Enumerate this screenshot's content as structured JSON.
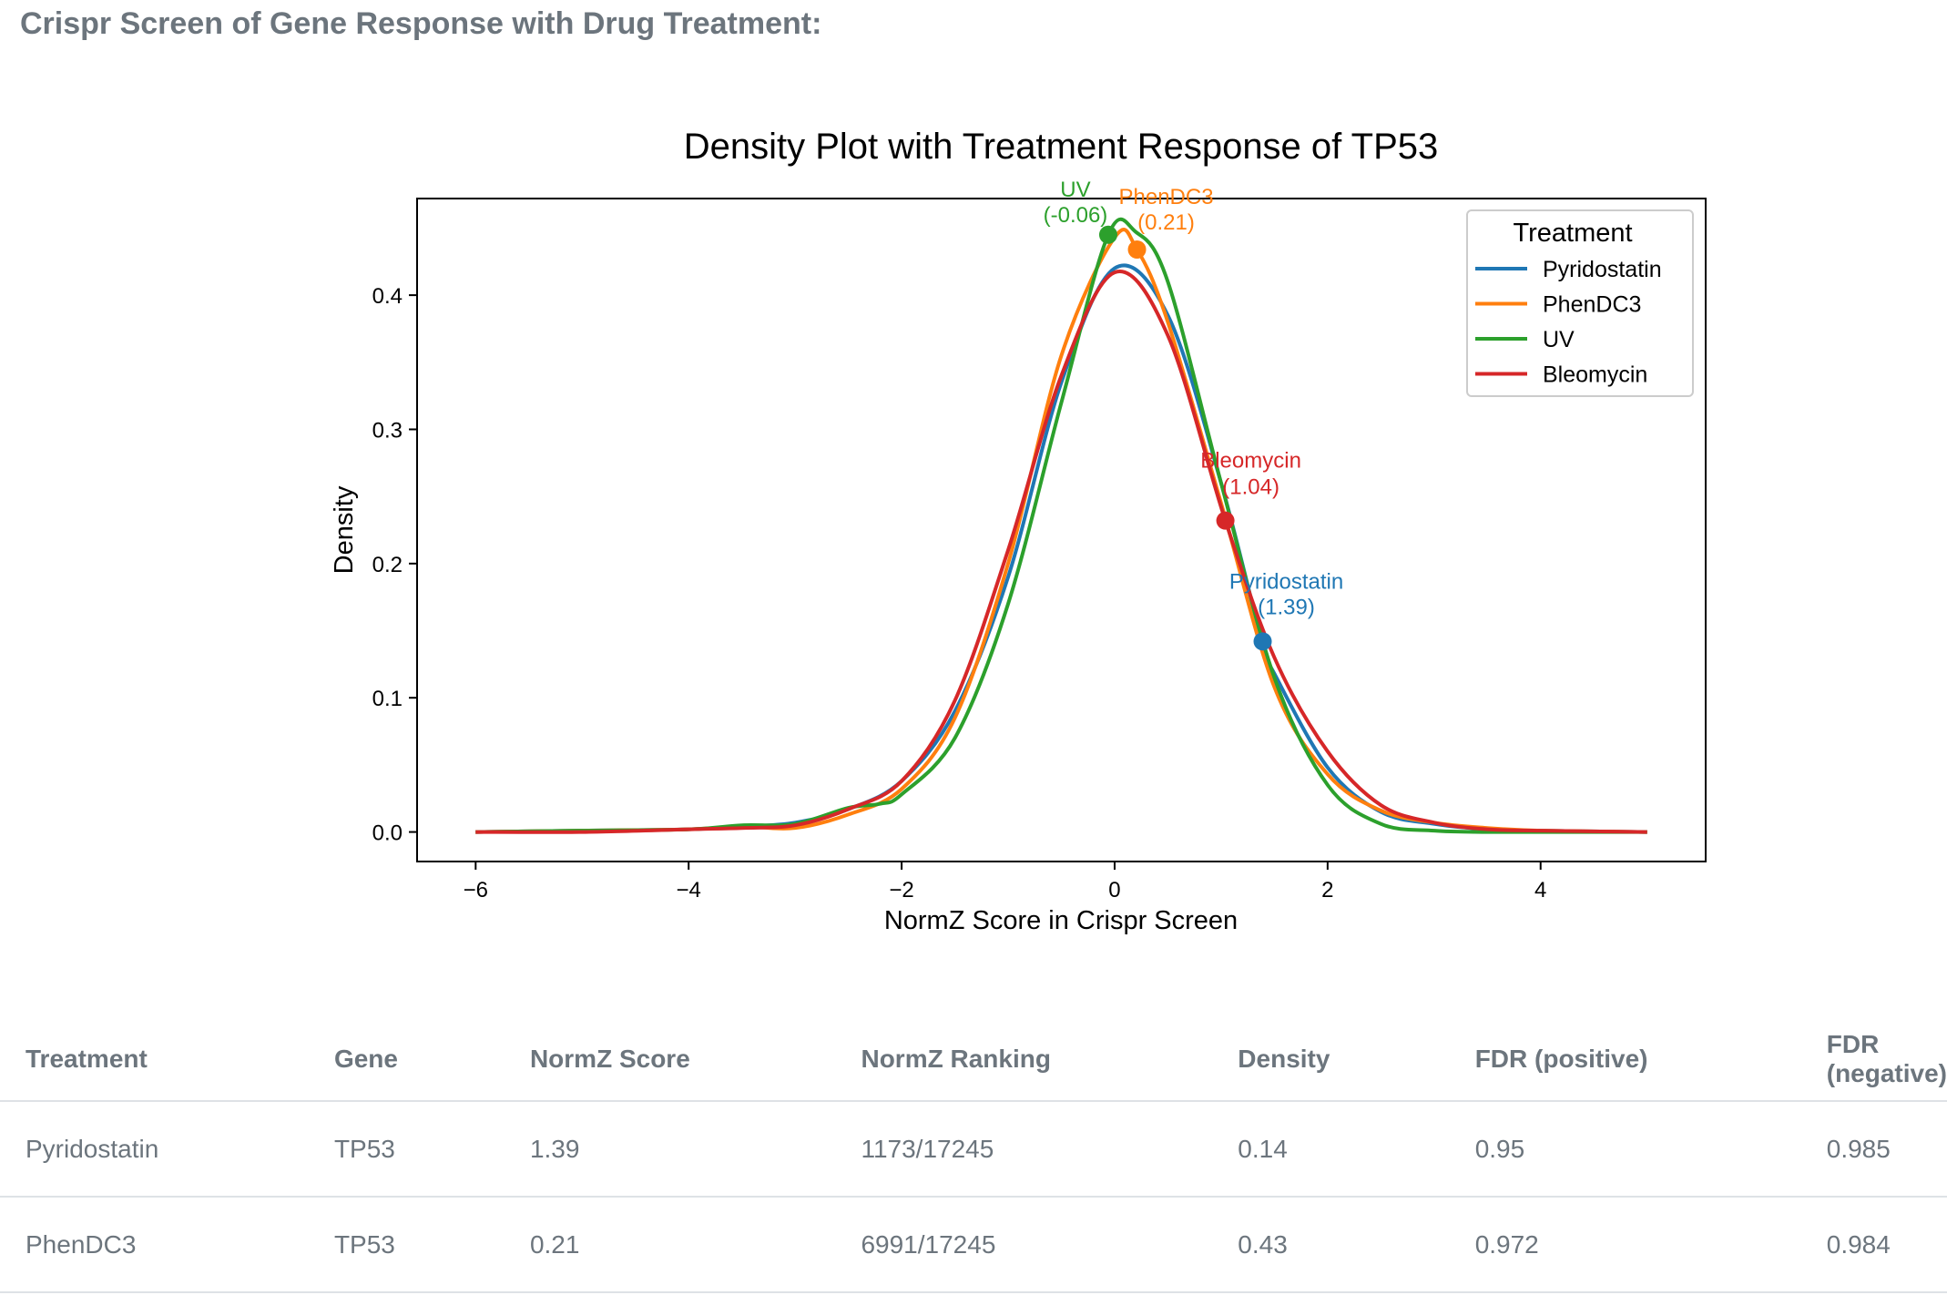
{
  "page": {
    "heading": "Crispr Screen of Gene Response with Drug Treatment:"
  },
  "chart_data": {
    "type": "line",
    "title": "Density Plot with Treatment Response of TP53",
    "xlabel": "NormZ Score in Crispr Screen",
    "ylabel": "Density",
    "xlim": [
      -6.55,
      5.55
    ],
    "ylim": [
      -0.022,
      0.472
    ],
    "xticks": [
      -6,
      -4,
      -2,
      0,
      2,
      4
    ],
    "xtick_labels": [
      "−6",
      "−4",
      "−2",
      "0",
      "2",
      "4"
    ],
    "yticks": [
      0.0,
      0.1,
      0.2,
      0.3,
      0.4
    ],
    "ytick_labels": [
      "0.0",
      "0.1",
      "0.2",
      "0.3",
      "0.4"
    ],
    "legend": {
      "title": "Treatment",
      "position": "upper right",
      "entries": [
        "Pyridostatin",
        "PhenDC3",
        "UV",
        "Bleomycin"
      ]
    },
    "series": [
      {
        "name": "Pyridostatin",
        "color": "#1f77b4",
        "x": [
          -6,
          -5,
          -4,
          -3.5,
          -3,
          -2.5,
          -2,
          -1.5,
          -1,
          -0.5,
          0,
          0.5,
          1,
          1.39,
          1.5,
          2,
          2.5,
          3,
          3.5,
          4,
          5
        ],
        "y": [
          0.0,
          0.001,
          0.002,
          0.004,
          0.007,
          0.017,
          0.038,
          0.09,
          0.19,
          0.335,
          0.42,
          0.385,
          0.26,
          0.14,
          0.118,
          0.048,
          0.015,
          0.006,
          0.002,
          0.001,
          0.0
        ]
      },
      {
        "name": "PhenDC3",
        "color": "#ff7f0e",
        "x": [
          -6,
          -5,
          -4,
          -3.5,
          -3,
          -2.5,
          -2,
          -1.5,
          -1,
          -0.5,
          0,
          0.21,
          0.5,
          1,
          1.5,
          2,
          2.5,
          3,
          3.5,
          4,
          5
        ],
        "y": [
          0.0,
          0.001,
          0.002,
          0.004,
          0.003,
          0.013,
          0.032,
          0.085,
          0.2,
          0.355,
          0.443,
          0.434,
          0.38,
          0.245,
          0.108,
          0.043,
          0.016,
          0.007,
          0.003,
          0.001,
          0.0
        ]
      },
      {
        "name": "UV",
        "color": "#2ca02c",
        "x": [
          -6,
          -5,
          -4,
          -3.5,
          -3,
          -2.5,
          -2.2,
          -2,
          -1.5,
          -1,
          -0.5,
          -0.06,
          0.2,
          0.5,
          1,
          1.5,
          2,
          2.5,
          3,
          3.5,
          4,
          5
        ],
        "y": [
          0.0,
          0.001,
          0.002,
          0.005,
          0.006,
          0.018,
          0.021,
          0.028,
          0.07,
          0.17,
          0.32,
          0.445,
          0.447,
          0.41,
          0.26,
          0.115,
          0.035,
          0.006,
          0.001,
          0.0,
          0.0,
          0.0
        ]
      },
      {
        "name": "Bleomycin",
        "color": "#d62728",
        "x": [
          -6,
          -5,
          -4,
          -3.5,
          -3,
          -2.5,
          -2,
          -1.5,
          -1,
          -0.5,
          0,
          0.5,
          1.04,
          1.5,
          2,
          2.5,
          3,
          3.5,
          4,
          5
        ],
        "y": [
          0.0,
          0.0,
          0.002,
          0.003,
          0.005,
          0.017,
          0.038,
          0.098,
          0.21,
          0.34,
          0.417,
          0.37,
          0.232,
          0.13,
          0.06,
          0.02,
          0.007,
          0.002,
          0.001,
          0.0
        ]
      }
    ],
    "annotations": [
      {
        "name": "UV",
        "x": -0.06,
        "y": 0.445,
        "label": "UV",
        "value_label": "(-0.06)",
        "color": "#2ca02c"
      },
      {
        "name": "PhenDC3",
        "x": 0.21,
        "y": 0.434,
        "label": "PhenDC3",
        "value_label": "(0.21)",
        "color": "#ff7f0e"
      },
      {
        "name": "Bleomycin",
        "x": 1.04,
        "y": 0.232,
        "label": "Bleomycin",
        "value_label": "(1.04)",
        "color": "#d62728"
      },
      {
        "name": "Pyridostatin",
        "x": 1.39,
        "y": 0.142,
        "label": "Pyridostatin",
        "value_label": "(1.39)",
        "color": "#1f77b4"
      }
    ]
  },
  "table": {
    "headers": [
      "Treatment",
      "Gene",
      "NormZ Score",
      "NormZ Ranking",
      "Density",
      "FDR (positive)",
      "FDR (negative)"
    ],
    "rows": [
      [
        "Pyridostatin",
        "TP53",
        "1.39",
        "1173/17245",
        "0.14",
        "0.95",
        "0.985"
      ],
      [
        "PhenDC3",
        "TP53",
        "0.21",
        "6991/17245",
        "0.43",
        "0.972",
        "0.984"
      ]
    ]
  }
}
